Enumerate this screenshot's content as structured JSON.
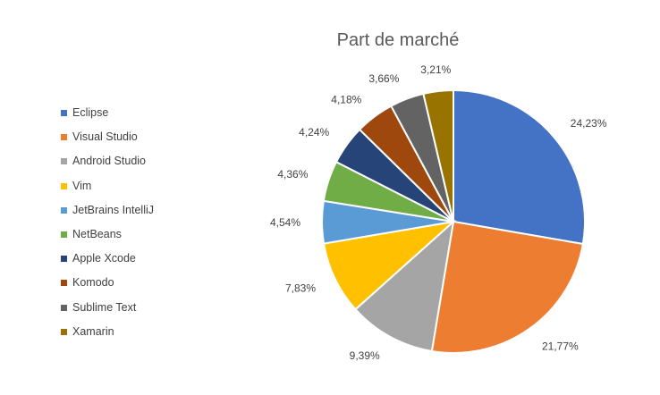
{
  "chart_data": {
    "type": "pie",
    "title": "Part de marché",
    "legend_position": "left",
    "categories": [
      "Eclipse",
      "Visual Studio",
      "Android Studio",
      "Vim",
      "JetBrains IntelliJ",
      "NetBeans",
      "Apple Xcode",
      "Komodo",
      "Sublime Text",
      "Xamarin"
    ],
    "values": [
      24.23,
      21.77,
      9.39,
      7.83,
      4.54,
      4.36,
      4.24,
      4.18,
      3.66,
      3.21
    ],
    "labels": [
      "24,23%",
      "21,77%",
      "9,39%",
      "7,83%",
      "4,54%",
      "4,36%",
      "4,24%",
      "4,18%",
      "3,66%",
      "3,21%"
    ],
    "colors": [
      "#4472C4",
      "#ED7D31",
      "#A5A5A5",
      "#FFC000",
      "#5B9BD5",
      "#70AD47",
      "#264478",
      "#9E480E",
      "#636363",
      "#997300"
    ]
  }
}
